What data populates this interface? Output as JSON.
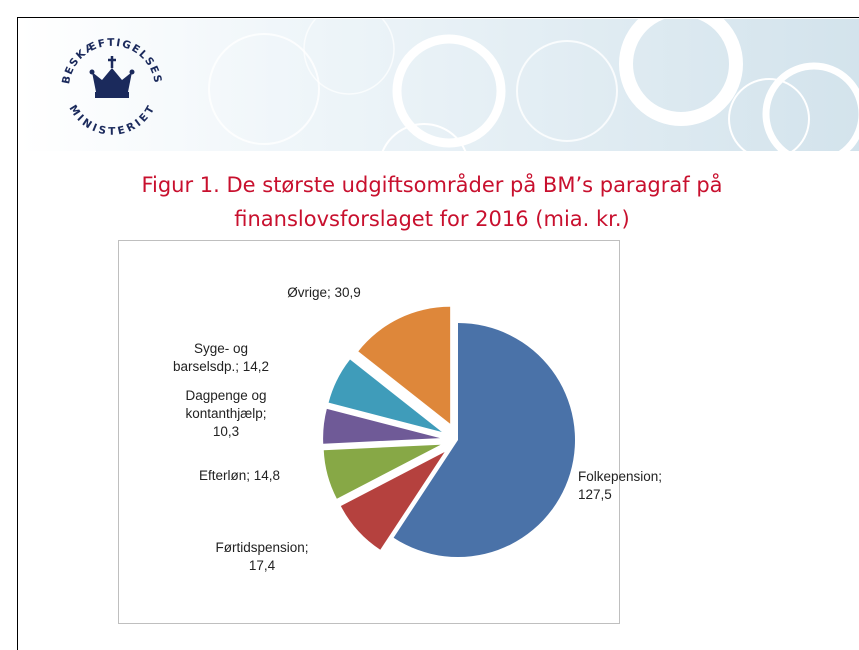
{
  "logo": {
    "top_text": "BESKÆFTIGELSES",
    "bottom_text": "MINISTERIET"
  },
  "chart_data": {
    "type": "pie",
    "title": "Figur 1. De største udgiftsområder på BM’s paragraf på finanslovsforslaget for 2016 (mia. kr.)",
    "values": [
      127.5,
      17.4,
      14.8,
      10.3,
      14.2,
      30.9
    ],
    "value_labels": [
      "Folkepension;\n127,5",
      "Førtidspension;\n17,4",
      "Efterløn; 14,8",
      "Dagpenge og\nkontanthjælp;\n10,3",
      "Syge- og\nbarselsdp.; 14,2",
      "Øvrige; 30,9"
    ],
    "colors": [
      "#4a72a8",
      "#b5413e",
      "#87a846",
      "#6f5a97",
      "#3f9cba",
      "#de873a"
    ]
  }
}
